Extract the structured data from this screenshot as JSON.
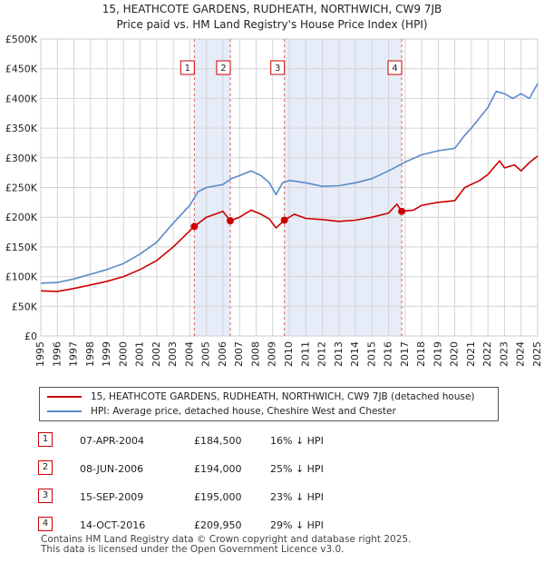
{
  "title_line1": "15, HEATHCOTE GARDENS, RUDHEATH, NORTHWICH, CW9 7JB",
  "title_line2": "Price paid vs. HM Land Registry's House Price Index (HPI)",
  "legend": {
    "series1": "15, HEATHCOTE GARDENS, RUDHEATH, NORTHWICH, CW9 7JB (detached house)",
    "series2": "HPI: Average price, detached house, Cheshire West and Chester",
    "color1": "#cc0000",
    "color2": "#5b8ac8"
  },
  "sales": [
    {
      "num": "1",
      "date": "07-APR-2004",
      "price": "£184,500",
      "hpi": "16% ↓ HPI"
    },
    {
      "num": "2",
      "date": "08-JUN-2006",
      "price": "£194,000",
      "hpi": "25% ↓ HPI"
    },
    {
      "num": "3",
      "date": "15-SEP-2009",
      "price": "£195,000",
      "hpi": "23% ↓ HPI"
    },
    {
      "num": "4",
      "date": "14-OCT-2016",
      "price": "£209,950",
      "hpi": "29% ↓ HPI"
    }
  ],
  "footer_line1": "Contains HM Land Registry data © Crown copyright and database right 2025.",
  "footer_line2": "This data is licensed under the Open Government Licence v3.0.",
  "chart_data": {
    "type": "line",
    "xlim": [
      1995,
      2025
    ],
    "ylim": [
      0,
      500000
    ],
    "y_ticks": [
      0,
      50000,
      100000,
      150000,
      200000,
      250000,
      300000,
      350000,
      400000,
      450000,
      500000
    ],
    "y_tick_labels": [
      "£0",
      "£50K",
      "£100K",
      "£150K",
      "£200K",
      "£250K",
      "£300K",
      "£350K",
      "£400K",
      "£450K",
      "£500K"
    ],
    "x_ticks": [
      1995,
      1996,
      1997,
      1998,
      1999,
      2000,
      2001,
      2002,
      2003,
      2004,
      2005,
      2006,
      2007,
      2008,
      2009,
      2010,
      2011,
      2012,
      2013,
      2014,
      2015,
      2016,
      2017,
      2018,
      2019,
      2020,
      2021,
      2022,
      2023,
      2024,
      2025
    ],
    "x_tick_labels": [
      "1995",
      "1996",
      "1997",
      "1998",
      "1999",
      "2000",
      "2001",
      "2002",
      "2003",
      "2004",
      "2005",
      "2006",
      "2007",
      "2008",
      "2009",
      "2010",
      "2011",
      "2012",
      "2013",
      "2014",
      "2015",
      "2016",
      "2017",
      "2018",
      "2019",
      "2020",
      "2021",
      "2022",
      "2023",
      "2024",
      "2025"
    ],
    "grid": true,
    "series": [
      {
        "name": "15, HEATHCOTE GARDENS, RUDHEATH, NORTHWICH, CW9 7JB (detached house)",
        "color": "#cc0000",
        "x": [
          1995,
          1996,
          1997,
          1998,
          1999,
          2000,
          2001,
          2002,
          2003,
          2004.27,
          2005,
          2006.0,
          2006.44,
          2007,
          2007.7,
          2008.3,
          2008.8,
          2009.2,
          2009.71,
          2010.3,
          2011,
          2012,
          2013,
          2014,
          2015,
          2016.0,
          2016.5,
          2016.79,
          2017.5,
          2018,
          2019,
          2020,
          2020.6,
          2021.5,
          2022,
          2022.7,
          2023,
          2023.6,
          2024,
          2024.5,
          2025
        ],
        "y": [
          76000,
          75000,
          80000,
          86000,
          92000,
          100000,
          112000,
          127000,
          150000,
          184500,
          200000,
          210000,
          194000,
          200000,
          212000,
          205000,
          197000,
          182000,
          195000,
          205000,
          198000,
          196000,
          193000,
          195000,
          200000,
          207000,
          222000,
          209950,
          212000,
          220000,
          225000,
          228000,
          250000,
          262000,
          272000,
          295000,
          283000,
          288000,
          278000,
          292000,
          303000
        ]
      },
      {
        "name": "HPI: Average price, detached house, Cheshire West and Chester",
        "color": "#5b8ac8",
        "x": [
          1995,
          1996,
          1997,
          1998,
          1999,
          2000,
          2001,
          2002,
          2003,
          2004,
          2004.5,
          2005,
          2006,
          2006.5,
          2007,
          2007.7,
          2008.3,
          2008.8,
          2009.2,
          2009.6,
          2010,
          2011,
          2012,
          2013,
          2014,
          2015,
          2016,
          2017,
          2018,
          2019,
          2020,
          2020.6,
          2021,
          2022,
          2022.5,
          2023,
          2023.5,
          2024,
          2024.5,
          2025
        ],
        "y": [
          89000,
          90000,
          96000,
          104000,
          112000,
          122000,
          138000,
          158000,
          190000,
          220000,
          243000,
          250000,
          255000,
          265000,
          270000,
          278000,
          270000,
          258000,
          238000,
          258000,
          262000,
          258000,
          252000,
          253000,
          258000,
          265000,
          278000,
          293000,
          305000,
          312000,
          316000,
          338000,
          350000,
          385000,
          412000,
          408000,
          400000,
          408000,
          400000,
          425000
        ]
      }
    ],
    "sale_markers": [
      {
        "label": "1",
        "x": 2004.27,
        "y": 184500
      },
      {
        "label": "2",
        "x": 2006.44,
        "y": 194000
      },
      {
        "label": "3",
        "x": 2009.71,
        "y": 195000
      },
      {
        "label": "4",
        "x": 2016.79,
        "y": 209950
      }
    ]
  }
}
